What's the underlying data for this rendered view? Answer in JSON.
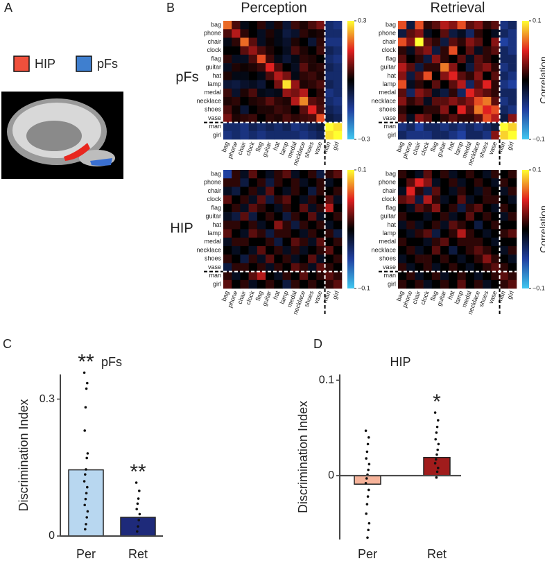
{
  "panels": [
    "A",
    "B",
    "C",
    "D"
  ],
  "legend_a": [
    {
      "name": "HIP",
      "color": "#f0503c"
    },
    {
      "name": "pFs",
      "color": "#3f7fcf"
    }
  ],
  "panel_b": {
    "columns": [
      "Perception",
      "Retrieval"
    ],
    "rows": [
      "pFs",
      "HIP"
    ]
  },
  "chart_data": [
    {
      "type": "heatmap",
      "categories": [
        "bag",
        "phone",
        "chair",
        "clock",
        "flag",
        "guitar",
        "hat",
        "lamp",
        "medal",
        "necklace",
        "shoes",
        "vase",
        "man",
        "girl"
      ],
      "clim": [
        -0.3,
        0.3
      ],
      "cticks": [
        {
          "value": -0.3,
          "label": "−0.3"
        },
        0.3
      ],
      "values": [
        [
          0.2,
          0.05,
          -0.02,
          0,
          0.03,
          -0.03,
          0.02,
          -0.05,
          0.04,
          0.02,
          0.05,
          0.08,
          -0.1,
          -0.12
        ],
        [
          0.05,
          0.12,
          0.03,
          0,
          -0.03,
          0.02,
          -0.02,
          -0.06,
          -0.04,
          0.03,
          0.01,
          0.02,
          -0.1,
          -0.1
        ],
        [
          -0.02,
          0.03,
          0.2,
          0.06,
          -0.03,
          0.01,
          -0.02,
          -0.04,
          0.02,
          0,
          -0.05,
          0.03,
          -0.12,
          -0.12
        ],
        [
          0,
          0,
          0.06,
          0.1,
          0.05,
          0.02,
          0,
          -0.03,
          0.05,
          0.02,
          0,
          0.04,
          -0.08,
          -0.1
        ],
        [
          0.03,
          -0.03,
          -0.03,
          0.05,
          0.18,
          0.04,
          -0.02,
          -0.05,
          -0.02,
          0.03,
          0.02,
          0,
          -0.1,
          -0.12
        ],
        [
          -0.03,
          0.02,
          0.01,
          0.02,
          0.04,
          0.15,
          0.05,
          0,
          -0.03,
          0.06,
          0.02,
          0.03,
          -0.08,
          -0.1
        ],
        [
          0.02,
          -0.02,
          -0.02,
          0,
          -0.02,
          0.05,
          0.12,
          0.08,
          -0.02,
          0.03,
          0.04,
          0.02,
          -0.1,
          -0.1
        ],
        [
          -0.05,
          -0.06,
          -0.04,
          -0.03,
          -0.05,
          0,
          0.08,
          0.28,
          0.1,
          0.02,
          0.03,
          0.05,
          -0.08,
          -0.1
        ],
        [
          0.04,
          -0.04,
          0.02,
          0.05,
          -0.02,
          -0.03,
          -0.02,
          0.1,
          0.08,
          0.12,
          0,
          0.03,
          -0.12,
          -0.1
        ],
        [
          0.02,
          0.03,
          0,
          0.02,
          0.03,
          0.06,
          0.03,
          0.02,
          0.12,
          0.22,
          0.06,
          0.04,
          -0.1,
          -0.12
        ],
        [
          0.05,
          0.01,
          -0.05,
          0,
          0.02,
          0.02,
          0.04,
          0.03,
          0,
          0.06,
          0.15,
          0.05,
          -0.08,
          -0.1
        ],
        [
          0.08,
          0.02,
          0.03,
          0.04,
          0,
          0.03,
          0.02,
          0.05,
          0.03,
          0.04,
          0.05,
          0.18,
          -0.06,
          -0.08
        ],
        [
          -0.1,
          -0.1,
          -0.12,
          -0.08,
          -0.1,
          -0.08,
          -0.1,
          -0.08,
          -0.12,
          -0.1,
          -0.08,
          -0.06,
          0.3,
          0.28
        ],
        [
          -0.12,
          -0.1,
          -0.12,
          -0.1,
          -0.12,
          -0.1,
          -0.1,
          -0.1,
          -0.1,
          -0.12,
          -0.1,
          -0.08,
          0.28,
          0.3
        ]
      ]
    },
    {
      "type": "heatmap",
      "categories": [
        "bag",
        "phone",
        "chair",
        "clock",
        "flag",
        "guitar",
        "hat",
        "lamp",
        "medal",
        "necklace",
        "shoes",
        "vase",
        "man",
        "girl"
      ],
      "clim": [
        -0.1,
        0.1
      ],
      "cticks": [
        {
          "value": -0.1,
          "label": "−0.1"
        },
        0.1
      ],
      "colorbar_label": "Correlation",
      "values": [
        [
          0.06,
          -0.02,
          0.06,
          0.01,
          0.02,
          0.04,
          0.03,
          0.06,
          0.02,
          0.03,
          0.01,
          0.02,
          -0.04,
          -0.03
        ],
        [
          -0.02,
          0.02,
          0.03,
          -0.01,
          0,
          0.02,
          -0.02,
          -0.01,
          -0.03,
          0.01,
          0,
          -0.01,
          -0.03,
          -0.04
        ],
        [
          0.06,
          0.03,
          0.1,
          0.02,
          0.01,
          -0.02,
          0.02,
          0.01,
          0.03,
          0.02,
          0,
          0.03,
          -0.05,
          -0.04
        ],
        [
          0.01,
          -0.01,
          0.02,
          0.03,
          -0.02,
          0.01,
          0.06,
          0,
          0.02,
          -0.01,
          0.01,
          0.02,
          -0.03,
          -0.04
        ],
        [
          0.02,
          0,
          0.01,
          -0.02,
          0.03,
          0.01,
          0,
          0.02,
          -0.01,
          0.02,
          0.01,
          0,
          -0.03,
          -0.03
        ],
        [
          0.04,
          0.02,
          -0.02,
          0.01,
          0.01,
          0.07,
          0.03,
          0,
          -0.02,
          0.02,
          0.03,
          0.01,
          -0.04,
          -0.03
        ],
        [
          0.03,
          -0.02,
          0.02,
          0.06,
          0,
          0.03,
          0.05,
          0.02,
          0.01,
          0.03,
          0,
          0.02,
          -0.03,
          -0.04
        ],
        [
          0.06,
          -0.01,
          0.01,
          0,
          0.02,
          0,
          0.02,
          0.04,
          -0.03,
          0.02,
          0.05,
          0.01,
          -0.04,
          -0.05
        ],
        [
          0.02,
          -0.03,
          0.03,
          0.02,
          -0.01,
          -0.02,
          0.01,
          -0.03,
          0.05,
          0.03,
          0.02,
          0.01,
          -0.03,
          -0.03
        ],
        [
          0.03,
          0.01,
          0.02,
          -0.01,
          0.02,
          0.02,
          0.03,
          0.02,
          0.03,
          0.06,
          0.07,
          0.02,
          -0.04,
          -0.03
        ],
        [
          0.01,
          0,
          0,
          0.01,
          0.01,
          0.03,
          0,
          0.05,
          0.02,
          0.07,
          0.05,
          0.06,
          -0.03,
          -0.04
        ],
        [
          0.02,
          -0.01,
          0.03,
          0.02,
          0,
          0.01,
          0.02,
          0.01,
          0.01,
          0.02,
          0.06,
          0.04,
          -0.02,
          0.03
        ],
        [
          -0.04,
          -0.03,
          -0.05,
          -0.03,
          -0.03,
          -0.04,
          -0.03,
          -0.04,
          -0.03,
          -0.04,
          -0.03,
          -0.02,
          0.1,
          0.09
        ],
        [
          -0.03,
          -0.04,
          -0.04,
          -0.04,
          -0.03,
          -0.03,
          -0.04,
          -0.05,
          -0.03,
          -0.03,
          -0.04,
          0.03,
          0.09,
          0.1
        ]
      ]
    },
    {
      "type": "heatmap",
      "categories": [
        "bag",
        "phone",
        "chair",
        "clock",
        "flag",
        "guitar",
        "hat",
        "lamp",
        "medal",
        "necklace",
        "shoes",
        "vase",
        "man",
        "girl"
      ],
      "clim": [
        -0.1,
        0.1
      ],
      "cticks": [
        {
          "value": -0.1,
          "label": "−0.1"
        },
        0.1
      ],
      "values": [
        [
          -0.05,
          0.01,
          -0.01,
          0.02,
          0,
          -0.01,
          0.01,
          0.02,
          -0.01,
          0,
          0.01,
          -0.02,
          0.01,
          0.02
        ],
        [
          0.01,
          0.01,
          -0.02,
          0,
          0.01,
          -0.02,
          0.01,
          0,
          0.01,
          -0.01,
          0,
          0.01,
          -0.01,
          0
        ],
        [
          -0.01,
          -0.02,
          0,
          0.01,
          -0.01,
          0.02,
          0,
          -0.01,
          0.01,
          0,
          -0.02,
          0.01,
          0,
          0.01
        ],
        [
          0.02,
          0,
          0.01,
          -0.01,
          0.02,
          -0.02,
          0.01,
          0.02,
          0,
          -0.01,
          0.01,
          0,
          0.02,
          -0.01
        ],
        [
          0,
          0.01,
          -0.01,
          0.02,
          0.01,
          0,
          -0.01,
          0.01,
          0,
          0.02,
          -0.01,
          0.01,
          0.04,
          0
        ],
        [
          -0.01,
          -0.02,
          0.02,
          -0.02,
          0,
          0.01,
          0,
          -0.02,
          0.01,
          0,
          0.02,
          -0.01,
          0,
          0.01
        ],
        [
          0.01,
          0.01,
          0,
          0.01,
          -0.01,
          0,
          0.03,
          0.01,
          -0.02,
          0.01,
          0,
          0.01,
          -0.01,
          0
        ],
        [
          0.02,
          0,
          -0.01,
          0.02,
          0.01,
          -0.02,
          0.01,
          0.01,
          0,
          -0.01,
          0.01,
          0,
          0.01,
          -0.02
        ],
        [
          -0.01,
          0.01,
          0.01,
          0,
          0,
          0.01,
          -0.02,
          0,
          0.02,
          0.01,
          -0.01,
          0.02,
          0,
          0.01
        ],
        [
          0,
          -0.01,
          0,
          -0.01,
          0.02,
          0,
          0.01,
          -0.01,
          0.01,
          -0.01,
          0,
          0.01,
          0.02,
          0
        ],
        [
          0.01,
          0,
          -0.02,
          0.01,
          -0.01,
          0.02,
          0,
          0.01,
          -0.01,
          0,
          0.02,
          -0.01,
          0,
          0.01
        ],
        [
          -0.02,
          0.01,
          0.01,
          0,
          0.01,
          -0.01,
          0.01,
          0,
          0.02,
          0.01,
          -0.01,
          0.02,
          0.01,
          0
        ],
        [
          0.01,
          -0.01,
          0,
          0.02,
          0.04,
          0,
          -0.01,
          0.01,
          0,
          0.02,
          0,
          0.01,
          0.02,
          0.01
        ],
        [
          0.02,
          0,
          0.01,
          -0.01,
          0,
          0.01,
          0,
          -0.02,
          0.01,
          0,
          0.01,
          0,
          0.01,
          0.02
        ]
      ]
    },
    {
      "type": "heatmap",
      "categories": [
        "bag",
        "phone",
        "chair",
        "clock",
        "flag",
        "guitar",
        "hat",
        "lamp",
        "medal",
        "necklace",
        "shoes",
        "vase",
        "man",
        "girl"
      ],
      "clim": [
        -0.1,
        0.1
      ],
      "cticks": [
        {
          "value": -0.1,
          "label": "−0.1"
        },
        0.1
      ],
      "colorbar_label": "Correlation",
      "values": [
        [
          0.01,
          0,
          -0.01,
          0.02,
          0,
          0.01,
          -0.01,
          0,
          0.01,
          0,
          -0.01,
          0.01,
          0,
          0.01
        ],
        [
          0,
          0.02,
          0.05,
          0.03,
          -0.01,
          0,
          0.01,
          -0.01,
          0,
          0.01,
          0,
          -0.01,
          0.01,
          0
        ],
        [
          -0.01,
          0.05,
          0.01,
          -0.02,
          0.02,
          0,
          -0.01,
          0.01,
          0,
          -0.01,
          0.01,
          0,
          -0.01,
          0.01
        ],
        [
          0.02,
          0.03,
          -0.02,
          0.04,
          0.01,
          -0.01,
          0,
          0.02,
          -0.01,
          0,
          0.01,
          0.01,
          0,
          -0.01
        ],
        [
          0,
          -0.01,
          0.02,
          0.01,
          0.03,
          0,
          0.01,
          -0.02,
          0.01,
          0.02,
          0,
          -0.01,
          0.01,
          0
        ],
        [
          0.01,
          0,
          0,
          -0.01,
          0,
          0.01,
          -0.01,
          0,
          0.02,
          0,
          0.01,
          0,
          -0.01,
          0.01
        ],
        [
          -0.01,
          0.01,
          -0.01,
          0,
          0.01,
          -0.01,
          0.02,
          0.01,
          0,
          -0.02,
          0,
          0.01,
          0,
          0
        ],
        [
          0,
          -0.01,
          0.01,
          0.02,
          -0.02,
          0,
          0.01,
          0.04,
          0.01,
          0,
          -0.01,
          0,
          0.01,
          0.02
        ],
        [
          0.01,
          0,
          0,
          -0.01,
          0.01,
          0.02,
          0,
          0.01,
          0.01,
          0.01,
          0,
          -0.01,
          0,
          0
        ],
        [
          0,
          0.01,
          -0.01,
          0,
          0.02,
          0,
          -0.02,
          0,
          0.01,
          0.02,
          0.01,
          0,
          -0.01,
          0.01
        ],
        [
          -0.01,
          0,
          0.01,
          0.01,
          0,
          0.01,
          0,
          -0.01,
          0,
          0.01,
          0.03,
          0.01,
          0,
          -0.01
        ],
        [
          0.01,
          -0.01,
          0,
          0.01,
          -0.01,
          0,
          0.01,
          0,
          -0.01,
          0,
          0.01,
          0.02,
          0.01,
          0
        ],
        [
          0,
          0.01,
          -0.01,
          0,
          0.01,
          -0.01,
          0,
          0.01,
          0,
          -0.01,
          0,
          0.01,
          0.02,
          0.01
        ],
        [
          0.01,
          0,
          0.01,
          -0.01,
          0,
          0.01,
          0,
          0.02,
          0,
          0.01,
          -0.01,
          0,
          0.01,
          0.02
        ]
      ]
    },
    {
      "type": "bar",
      "title": "pFs",
      "ylabel": "Discrimination Index",
      "categories": [
        "Per",
        "Ret"
      ],
      "values": [
        0.145,
        0.041
      ],
      "colors": [
        "#b8d7f0",
        "#1e2a7a"
      ],
      "points": [
        [
          0.358,
          0.335,
          0.323,
          0.282,
          0.231,
          0.181,
          0.171,
          0.146,
          0.135,
          0.12,
          0.107,
          0.094,
          0.081,
          0.068,
          0.054,
          0.041,
          0.026,
          0.015
        ],
        [
          0.117,
          0.099,
          0.082,
          0.071,
          0.059,
          0.048,
          0.035,
          0.021,
          0.01
        ]
      ],
      "annotations": [
        "**",
        "**"
      ],
      "ylim": [
        0,
        0.354
      ],
      "yticks": [
        0,
        0.3
      ]
    },
    {
      "type": "bar",
      "title": "HIP",
      "ylabel": "Discrimination Index",
      "categories": [
        "Per",
        "Ret"
      ],
      "values": [
        -0.009,
        0.019
      ],
      "colors": [
        "#f6b39a",
        "#a11c1c"
      ],
      "points": [
        [
          0.047,
          0.04,
          0.033,
          0.025,
          0.018,
          0.012,
          0.006,
          0.001,
          -0.003,
          -0.008,
          -0.015,
          -0.022,
          -0.03,
          -0.04,
          -0.05,
          -0.057,
          -0.065
        ],
        [
          0.066,
          0.058,
          0.051,
          0.045,
          0.038,
          0.033,
          0.027,
          0.022,
          0.017,
          0.013,
          0.008,
          0.004,
          -0.002
        ]
      ],
      "annotations": [
        null,
        "*"
      ],
      "ylim": [
        -0.067,
        0.106
      ],
      "yticks": [
        0,
        0.1
      ]
    }
  ]
}
